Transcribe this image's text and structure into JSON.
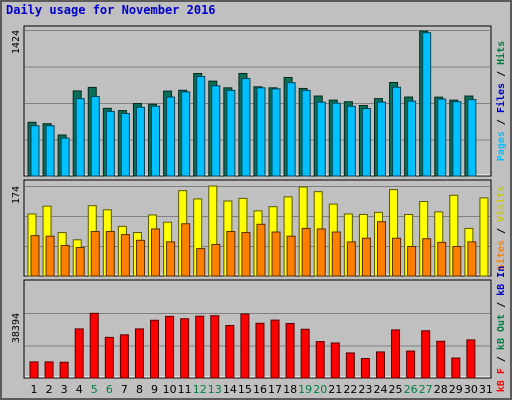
{
  "title": "Daily usage for November 2016",
  "colors": {
    "frame_bg": "#c0c0c0",
    "hits": "#00c0ff",
    "files": "#0b6f57",
    "pages": "#00c0ff",
    "visits": "#ffff00",
    "sites": "#ff8000",
    "kb": "#ff0000",
    "weekend_label": "#008040",
    "weekday_label": "#000000"
  },
  "chart_data": [
    {
      "type": "bar",
      "name": "hits-files-pages",
      "categories": [
        "1",
        "2",
        "3",
        "4",
        "5",
        "6",
        "7",
        "8",
        "9",
        "10",
        "11",
        "12",
        "13",
        "14",
        "15",
        "16",
        "17",
        "18",
        "19",
        "20",
        "21",
        "22",
        "23",
        "24",
        "25",
        "26",
        "27",
        "28",
        "29",
        "30",
        "31"
      ],
      "ymax": 1424,
      "ymax_label": "1424",
      "right_label": [
        {
          "text": "Pages",
          "color": "#00c0ff"
        },
        {
          "text": " / ",
          "color": "#000000"
        },
        {
          "text": "Files",
          "color": "#0000cc"
        },
        {
          "text": " / ",
          "color": "#000000"
        },
        {
          "text": "Hits",
          "color": "#008040"
        }
      ],
      "series": [
        {
          "name": "Hits",
          "values": [
            524,
            510,
            400,
            830,
            864,
            660,
            638,
            707,
            700,
            828,
            836,
            1000,
            925,
            860,
            1000,
            870,
            860,
            961,
            854,
            780,
            740,
            724,
            688,
            755,
            912,
            770,
            1414,
            769,
            740,
            780,
            0
          ]
        },
        {
          "name": "Files",
          "values": [
            490,
            490,
            370,
            755,
            775,
            630,
            610,
            670,
            680,
            770,
            820,
            970,
            880,
            835,
            950,
            860,
            850,
            910,
            835,
            720,
            710,
            680,
            658,
            720,
            866,
            730,
            1398,
            750,
            725,
            745,
            0
          ]
        }
      ]
    },
    {
      "type": "bar",
      "name": "visits-sites",
      "categories": [
        "1",
        "2",
        "3",
        "4",
        "5",
        "6",
        "7",
        "8",
        "9",
        "10",
        "11",
        "12",
        "13",
        "14",
        "15",
        "16",
        "17",
        "18",
        "19",
        "20",
        "21",
        "22",
        "23",
        "24",
        "25",
        "26",
        "27",
        "28",
        "29",
        "30",
        "31"
      ],
      "ymax": 174,
      "ymax_label": "174",
      "right_label": [
        {
          "text": "Sites",
          "color": "#ff8000"
        },
        {
          "text": " / ",
          "color": "#000000"
        },
        {
          "text": "Visits",
          "color": "#cccc00"
        }
      ],
      "series": [
        {
          "name": "Visits",
          "values": [
            120,
            135,
            84,
            70,
            136,
            128,
            96,
            84,
            118,
            104,
            165,
            149,
            174,
            145,
            150,
            126,
            134,
            153,
            172,
            163,
            139,
            120,
            119,
            123,
            167,
            119,
            144,
            124,
            156,
            92,
            151
          ]
        },
        {
          "name": "Sites",
          "values": [
            78,
            77,
            59,
            55,
            86,
            86,
            80,
            69,
            91,
            66,
            101,
            53,
            61,
            86,
            84,
            100,
            85,
            77,
            92,
            91,
            85,
            66,
            73,
            105,
            73,
            57,
            72,
            65,
            57,
            66,
            0
          ]
        }
      ]
    },
    {
      "type": "bar",
      "name": "kb",
      "categories": [
        "1",
        "2",
        "3",
        "4",
        "5",
        "6",
        "7",
        "8",
        "9",
        "10",
        "11",
        "12",
        "13",
        "14",
        "15",
        "16",
        "17",
        "18",
        "19",
        "20",
        "21",
        "22",
        "23",
        "24",
        "25",
        "26",
        "27",
        "28",
        "29",
        "30",
        "31"
      ],
      "ymax": 38394,
      "ymax_label": "38394",
      "right_label": [
        {
          "text": "kB F",
          "color": "#ff0000"
        },
        {
          "text": " / ",
          "color": "#000000"
        },
        {
          "text": "kB Out",
          "color": "#008040"
        },
        {
          "text": " / ",
          "color": "#000000"
        },
        {
          "text": "kB In",
          "color": "#0000cc"
        }
      ],
      "series": [
        {
          "name": "kB F",
          "values": [
            9500,
            9500,
            9300,
            29000,
            38200,
            24000,
            25500,
            29000,
            34100,
            36400,
            35000,
            36500,
            36800,
            31000,
            37800,
            32300,
            34200,
            32200,
            28800,
            21500,
            20700,
            14800,
            11500,
            15400,
            28400,
            15900,
            27900,
            21700,
            11800,
            22500,
            0
          ]
        }
      ]
    }
  ],
  "x_label_colors": [
    "#000000",
    "#000000",
    "#000000",
    "#000000",
    "#008040",
    "#008040",
    "#000000",
    "#000000",
    "#000000",
    "#000000",
    "#000000",
    "#008040",
    "#008040",
    "#000000",
    "#000000",
    "#000000",
    "#000000",
    "#000000",
    "#008040",
    "#008040",
    "#000000",
    "#000000",
    "#000000",
    "#000000",
    "#000000",
    "#008040",
    "#008040",
    "#000000",
    "#000000",
    "#000000",
    "#000000"
  ]
}
